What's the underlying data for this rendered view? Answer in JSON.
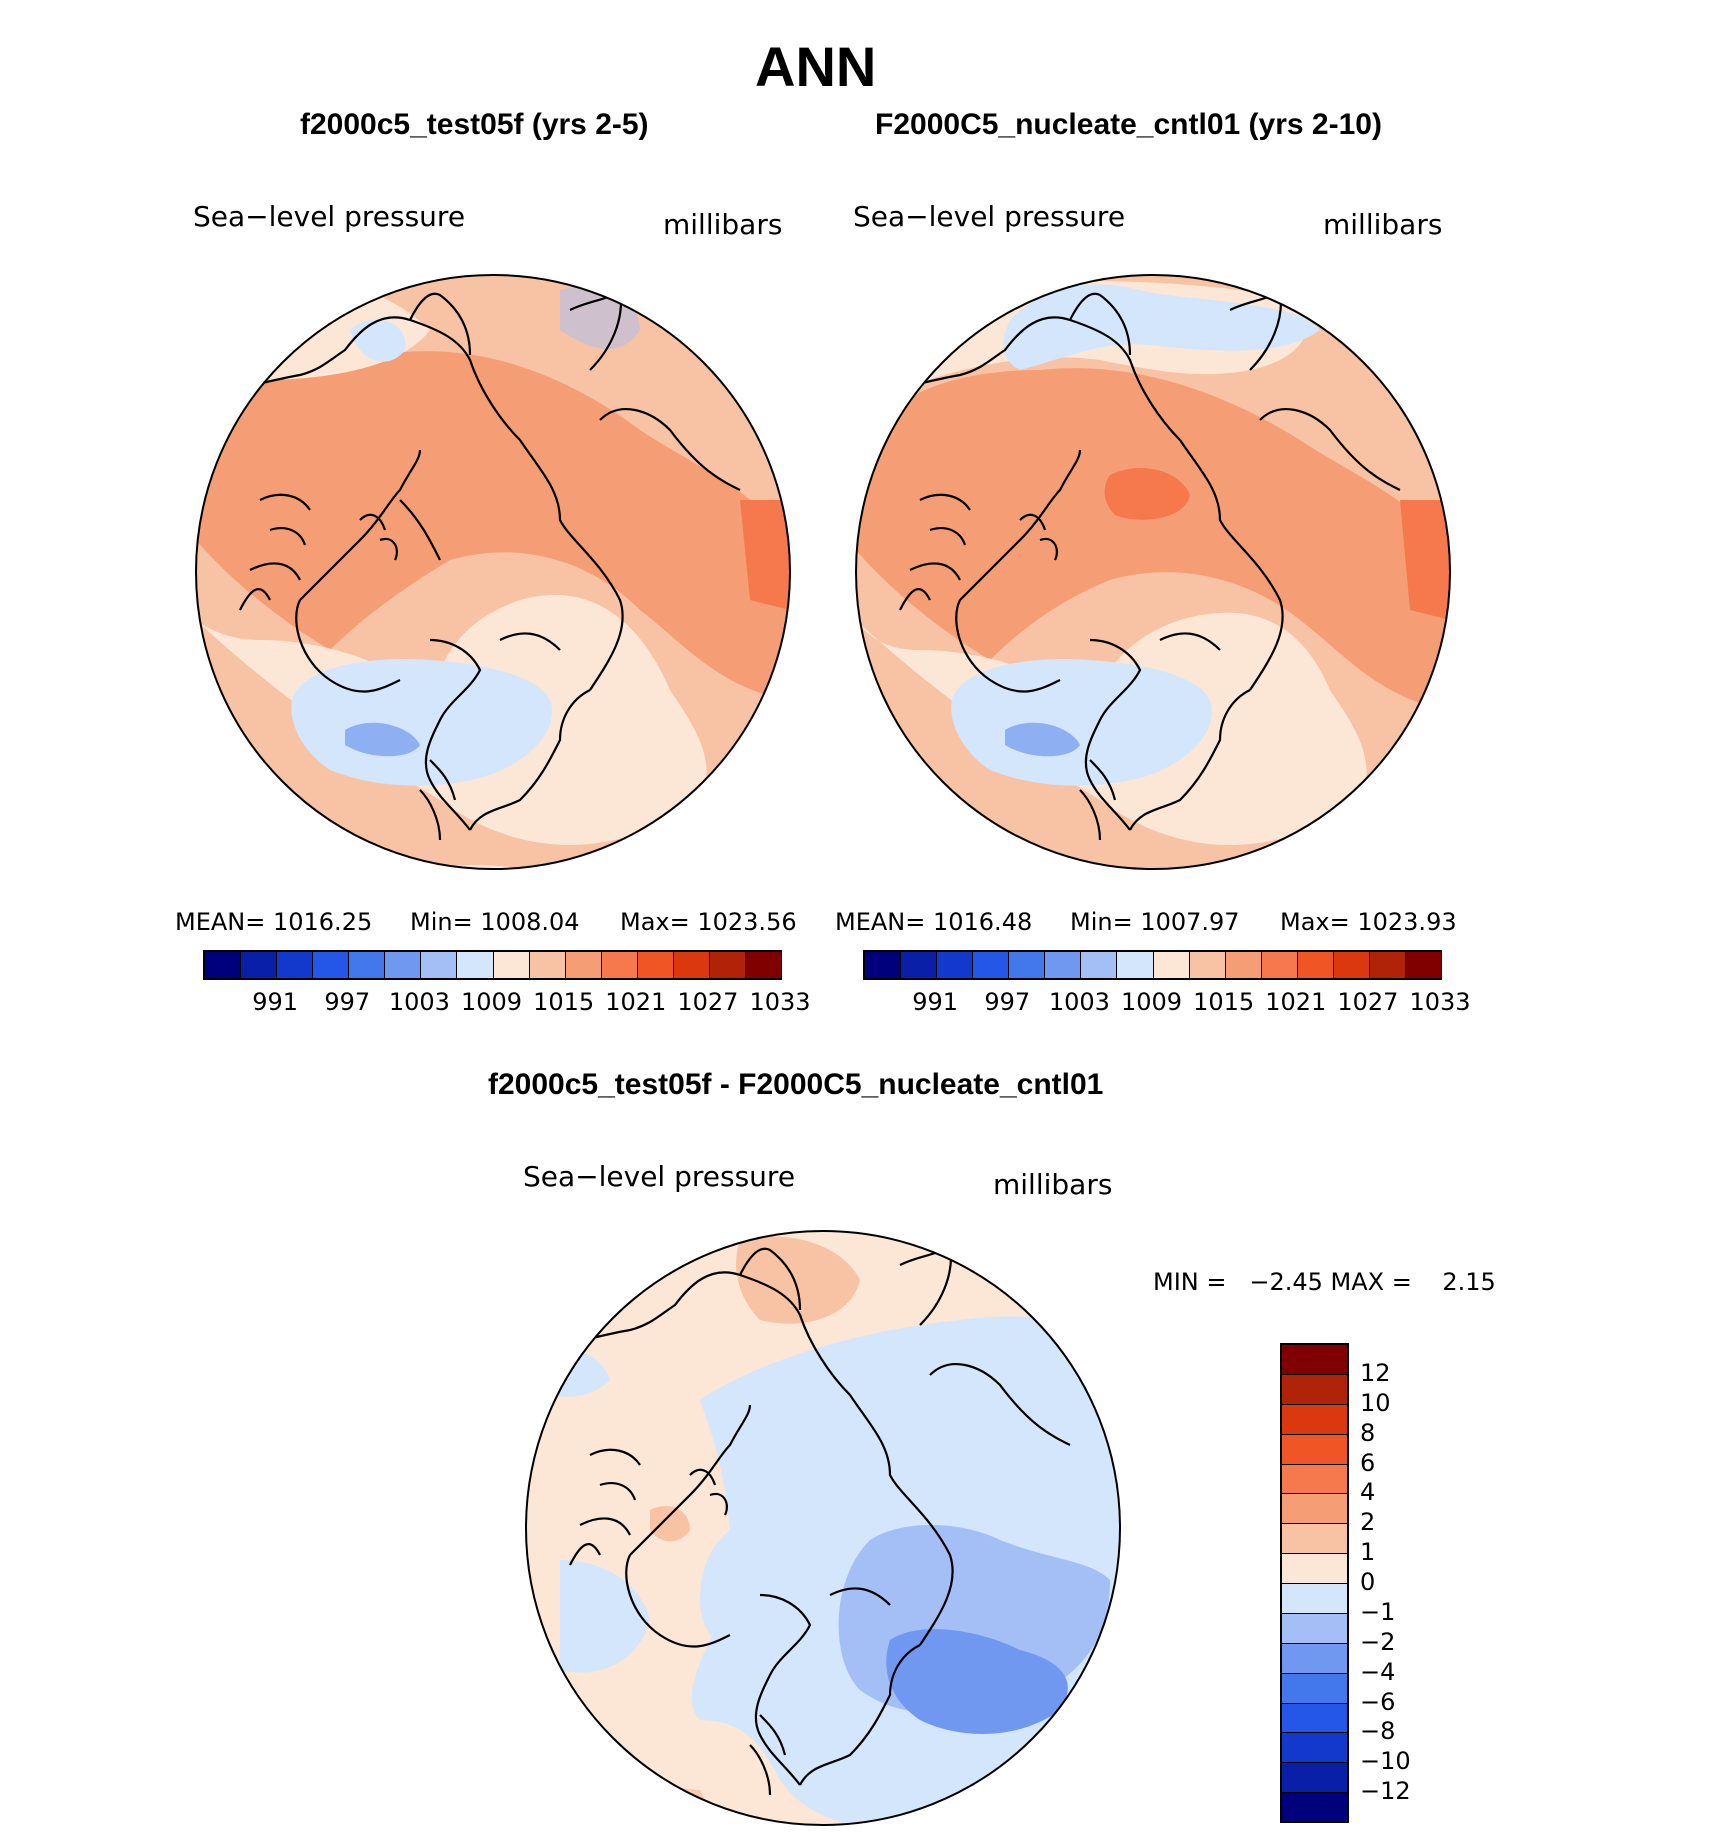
{
  "page_title": "ANN",
  "panels": [
    {
      "case_title": "f2000c5_test05f (yrs 2-5)",
      "left_label": "Sea−level pressure",
      "right_label": "millibars",
      "stats": {
        "mean": "MEAN= 1016.25",
        "min": "Min= 1008.04",
        "max": "Max= 1023.56"
      },
      "colorbar_ticks": [
        "991",
        "997",
        "1003",
        "1009",
        "1015",
        "1021",
        "1027",
        "1033"
      ]
    },
    {
      "case_title": "F2000C5_nucleate_cntl01 (yrs 2-10)",
      "left_label": "Sea−level pressure",
      "right_label": "millibars",
      "stats": {
        "mean": "MEAN= 1016.48",
        "min": "Min= 1007.97",
        "max": "Max= 1023.93"
      },
      "colorbar_ticks": [
        "991",
        "997",
        "1003",
        "1009",
        "1015",
        "1021",
        "1027",
        "1033"
      ]
    }
  ],
  "diff_panel": {
    "title": "f2000c5_test05f - F2000C5_nucleate_cntl01",
    "left_label": "Sea−level pressure",
    "right_label": "millibars",
    "minmax": "MIN =   −2.45 MAX =    2.15",
    "colorbar_ticks": [
      "12",
      "10",
      "8",
      "6",
      "4",
      "2",
      "1",
      "0",
      "−1",
      "−2",
      "−4",
      "−6",
      "−8",
      "−10",
      "−12"
    ]
  },
  "chart_data": [
    {
      "type": "heatmap",
      "title": "f2000c5_test05f (yrs 2-5)",
      "variable": "Sea-level pressure",
      "units": "millibars",
      "projection": "north polar stereographic",
      "mean": 1016.25,
      "min": 1008.04,
      "max": 1023.56,
      "levels": [
        991,
        994,
        997,
        1000,
        1003,
        1006,
        1009,
        1012,
        1015,
        1018,
        1021,
        1024,
        1027,
        1030,
        1033
      ]
    },
    {
      "type": "heatmap",
      "title": "F2000C5_nucleate_cntl01 (yrs 2-10)",
      "variable": "Sea-level pressure",
      "units": "millibars",
      "projection": "north polar stereographic",
      "mean": 1016.48,
      "min": 1007.97,
      "max": 1023.93,
      "levels": [
        991,
        994,
        997,
        1000,
        1003,
        1006,
        1009,
        1012,
        1015,
        1018,
        1021,
        1024,
        1027,
        1030,
        1033
      ]
    },
    {
      "type": "heatmap",
      "title": "f2000c5_test05f - F2000C5_nucleate_cntl01",
      "variable": "Sea-level pressure",
      "units": "millibars",
      "projection": "north polar stereographic",
      "min": -2.45,
      "max": 2.15,
      "levels": [
        -12,
        -10,
        -8,
        -6,
        -4,
        -2,
        -1,
        0,
        1,
        2,
        4,
        6,
        8,
        10,
        12
      ]
    }
  ],
  "palette": [
    "#00007d",
    "#0a1fa8",
    "#1339cc",
    "#2456e8",
    "#4278ec",
    "#7098f0",
    "#a4bff5",
    "#d3e6fb",
    "#fce6d6",
    "#f8c2a4",
    "#f59e75",
    "#f6784d",
    "#f05525",
    "#dc3810",
    "#b02309",
    "#800000"
  ]
}
